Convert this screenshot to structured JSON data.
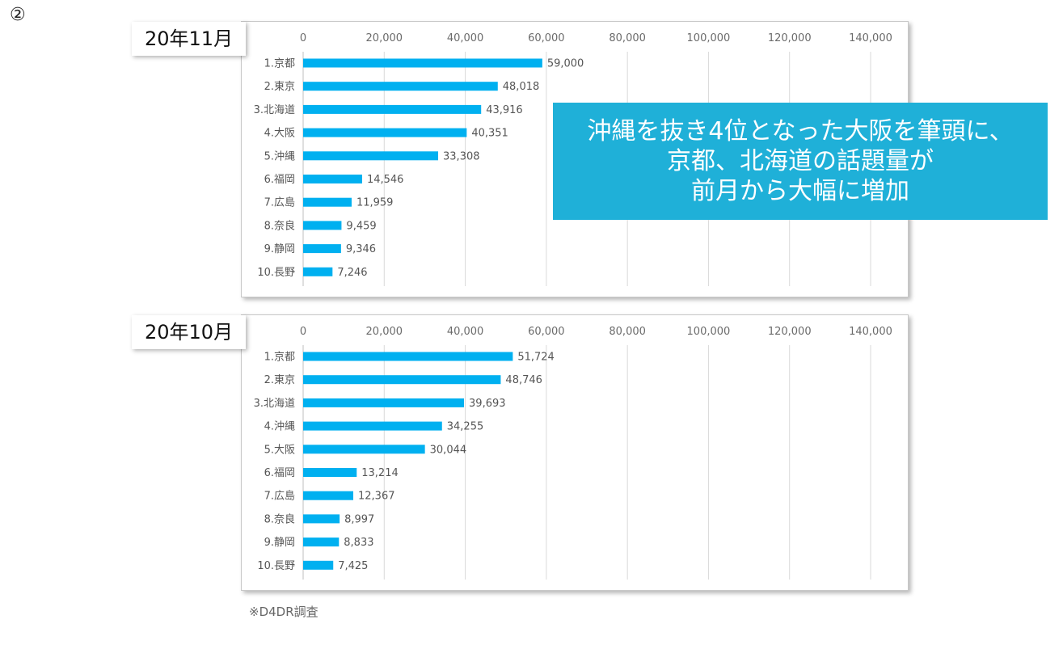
{
  "slide_number": "②",
  "callout": {
    "lines": [
      "沖縄を抜き4位となった大阪を筆頭に、",
      "京都、北海道の話題量が",
      "前月から大幅に増加"
    ]
  },
  "source_note": "※D4DR調査",
  "colors": {
    "bar": "#00b0f0",
    "callout": "#1fb0d8"
  },
  "chart_data": [
    {
      "type": "bar",
      "orientation": "horizontal",
      "title": "20年11月",
      "categories": [
        "1.京都",
        "2.東京",
        "3.北海道",
        "4.大阪",
        "5.沖縄",
        "6.福岡",
        "7.広島",
        "8.奈良",
        "9.静岡",
        "10.長野"
      ],
      "values": [
        59000,
        48018,
        43916,
        40351,
        33308,
        14546,
        11959,
        9459,
        9346,
        7246
      ],
      "value_labels": [
        "59,000",
        "48,018",
        "43,916",
        "40,351",
        "33,308",
        "14,546",
        "11,959",
        "9,459",
        "9,346",
        "7,246"
      ],
      "xlim": [
        0,
        140000
      ],
      "xticks": [
        "0",
        "20,000",
        "40,000",
        "60,000",
        "80,000",
        "100,000",
        "120,000",
        "140,000"
      ],
      "axis_position": "top",
      "grid": true
    },
    {
      "type": "bar",
      "orientation": "horizontal",
      "title": "20年10月",
      "categories": [
        "1.京都",
        "2.東京",
        "3.北海道",
        "4.沖縄",
        "5.大阪",
        "6.福岡",
        "7.広島",
        "8.奈良",
        "9.静岡",
        "10.長野"
      ],
      "values": [
        51724,
        48746,
        39693,
        34255,
        30044,
        13214,
        12367,
        8997,
        8833,
        7425
      ],
      "value_labels": [
        "51,724",
        "48,746",
        "39,693",
        "34,255",
        "30,044",
        "13,214",
        "12,367",
        "8,997",
        "8,833",
        "7,425"
      ],
      "xlim": [
        0,
        140000
      ],
      "xticks": [
        "0",
        "20,000",
        "40,000",
        "60,000",
        "80,000",
        "100,000",
        "120,000",
        "140,000"
      ],
      "axis_position": "top",
      "grid": true
    }
  ]
}
